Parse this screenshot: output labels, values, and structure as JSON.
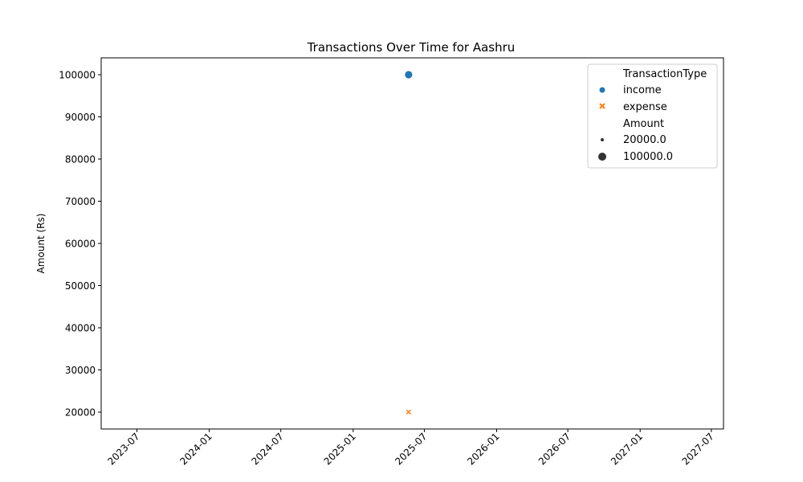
{
  "chart_data": {
    "type": "scatter",
    "title": "Transactions Over Time for Aashru",
    "xlabel": "",
    "ylabel": "Amount (Rs)",
    "x_ticks": [
      "2023-07",
      "2024-01",
      "2024-07",
      "2025-01",
      "2025-07",
      "2026-01",
      "2026-07",
      "2027-01",
      "2027-07"
    ],
    "y_ticks": [
      20000,
      30000,
      40000,
      50000,
      60000,
      70000,
      80000,
      90000,
      100000
    ],
    "xlim": [
      "2023-04-01",
      "2027-08-01"
    ],
    "ylim": [
      16000,
      104000
    ],
    "grid": false,
    "legend_position": "top-right",
    "series": [
      {
        "name": "income",
        "marker": "circle",
        "color": "#1f77b4",
        "points": [
          {
            "x": "2025-05-22",
            "y": 100000
          }
        ]
      },
      {
        "name": "expense",
        "marker": "x",
        "color": "#ff7f0e",
        "points": [
          {
            "x": "2025-05-22",
            "y": 20000
          }
        ]
      }
    ],
    "legend": {
      "hue_title": "TransactionType",
      "hue_entries": [
        {
          "label": "income",
          "marker": "circle",
          "color": "#1f77b4"
        },
        {
          "label": "expense",
          "marker": "x",
          "color": "#ff7f0e"
        }
      ],
      "size_title": "Amount",
      "size_entries": [
        {
          "label": "20000.0",
          "value": 20000
        },
        {
          "label": "100000.0",
          "value": 100000
        }
      ]
    }
  }
}
